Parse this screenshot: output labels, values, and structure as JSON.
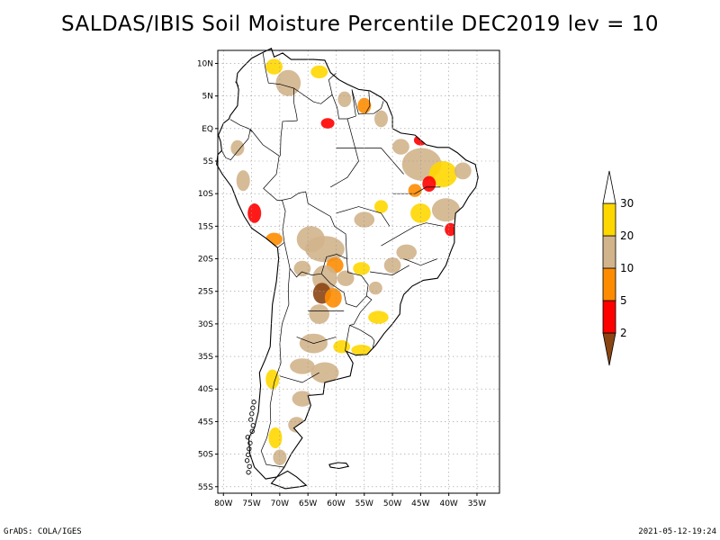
{
  "title": "SALDAS/IBIS Soil Moisture Percentile DEC2019 lev = 10",
  "footer": {
    "left": "GrADS: COLA/IGES",
    "right": "2021-05-12-19:24"
  },
  "map": {
    "lon_range": [
      -81,
      -31
    ],
    "lat_range": [
      -56,
      12
    ],
    "lat_ticks": [
      {
        "value": 10,
        "label": "10N"
      },
      {
        "value": 5,
        "label": "5N"
      },
      {
        "value": 0,
        "label": "EQ"
      },
      {
        "value": -5,
        "label": "5S"
      },
      {
        "value": -10,
        "label": "10S"
      },
      {
        "value": -15,
        "label": "15S"
      },
      {
        "value": -20,
        "label": "20S"
      },
      {
        "value": -25,
        "label": "25S"
      },
      {
        "value": -30,
        "label": "30S"
      },
      {
        "value": -35,
        "label": "35S"
      },
      {
        "value": -40,
        "label": "40S"
      },
      {
        "value": -45,
        "label": "45S"
      },
      {
        "value": -50,
        "label": "50S"
      },
      {
        "value": -55,
        "label": "55S"
      }
    ],
    "lon_ticks": [
      {
        "value": -80,
        "label": "80W"
      },
      {
        "value": -75,
        "label": "75W"
      },
      {
        "value": -70,
        "label": "70W"
      },
      {
        "value": -65,
        "label": "65W"
      },
      {
        "value": -60,
        "label": "60W"
      },
      {
        "value": -55,
        "label": "55W"
      },
      {
        "value": -50,
        "label": "50W"
      },
      {
        "value": -45,
        "label": "45W"
      },
      {
        "value": -40,
        "label": "40W"
      },
      {
        "value": -35,
        "label": "35W"
      }
    ],
    "grid": true,
    "coastline": [
      [
        -77.5,
        8.5
      ],
      [
        -76.5,
        9.5
      ],
      [
        -75,
        10.8
      ],
      [
        -73,
        11.7
      ],
      [
        -71.5,
        12.3
      ],
      [
        -71,
        11
      ],
      [
        -69.5,
        11.6
      ],
      [
        -68,
        10.6
      ],
      [
        -66,
        10.6
      ],
      [
        -64,
        10.6
      ],
      [
        -62,
        10.5
      ],
      [
        -61,
        8.6
      ],
      [
        -59.5,
        7.5
      ],
      [
        -58,
        6.8
      ],
      [
        -56,
        6
      ],
      [
        -54,
        5.8
      ],
      [
        -52,
        4.8
      ],
      [
        -51,
        4
      ],
      [
        -50,
        1.8
      ],
      [
        -50,
        0
      ],
      [
        -48.5,
        -0.7
      ],
      [
        -46,
        -1
      ],
      [
        -44,
        -2.5
      ],
      [
        -42,
        -2.9
      ],
      [
        -40,
        -2.9
      ],
      [
        -38.5,
        -3.7
      ],
      [
        -37,
        -4.8
      ],
      [
        -35.3,
        -5.5
      ],
      [
        -34.8,
        -7.5
      ],
      [
        -35.2,
        -9
      ],
      [
        -36.5,
        -10.5
      ],
      [
        -37.5,
        -12
      ],
      [
        -38.8,
        -13
      ],
      [
        -39,
        -15
      ],
      [
        -39,
        -17.5
      ],
      [
        -39.7,
        -19
      ],
      [
        -40.5,
        -21
      ],
      [
        -42,
        -23
      ],
      [
        -44.5,
        -23.3
      ],
      [
        -46.5,
        -24.2
      ],
      [
        -48,
        -25.5
      ],
      [
        -48.6,
        -27
      ],
      [
        -48.7,
        -28.5
      ],
      [
        -50,
        -30
      ],
      [
        -51.5,
        -31.5
      ],
      [
        -53,
        -33.3
      ],
      [
        -54.5,
        -34.7
      ],
      [
        -56.5,
        -34.8
      ],
      [
        -58.2,
        -34.2
      ],
      [
        -57,
        -36
      ],
      [
        -57.5,
        -38
      ],
      [
        -62,
        -39
      ],
      [
        -62.3,
        -40.8
      ],
      [
        -65,
        -41
      ],
      [
        -64.5,
        -42.5
      ],
      [
        -65.5,
        -44.8
      ],
      [
        -67.5,
        -46
      ],
      [
        -66,
        -47.5
      ],
      [
        -68,
        -50
      ],
      [
        -69.2,
        -52
      ],
      [
        -70.5,
        -53.5
      ],
      [
        -72.5,
        -53.8
      ],
      [
        -74.5,
        -52
      ],
      [
        -75.3,
        -50
      ],
      [
        -75.5,
        -47.5
      ],
      [
        -74.5,
        -46
      ],
      [
        -73.8,
        -43.5
      ],
      [
        -73.6,
        -41.5
      ],
      [
        -73.4,
        -39.5
      ],
      [
        -73.6,
        -37.5
      ],
      [
        -72.6,
        -35.5
      ],
      [
        -71.7,
        -33.5
      ],
      [
        -71.5,
        -30
      ],
      [
        -71.3,
        -27
      ],
      [
        -70.6,
        -23.5
      ],
      [
        -70.2,
        -20
      ],
      [
        -70.4,
        -18.3
      ],
      [
        -72.5,
        -16.8
      ],
      [
        -75,
        -15.3
      ],
      [
        -76.3,
        -13.5
      ],
      [
        -77.4,
        -11.5
      ],
      [
        -78.5,
        -9
      ],
      [
        -80.2,
        -7
      ],
      [
        -81.2,
        -5.5
      ],
      [
        -81,
        -4
      ],
      [
        -80.3,
        -3.4
      ],
      [
        -80.5,
        -2
      ],
      [
        -80.9,
        -1
      ],
      [
        -80,
        0.8
      ],
      [
        -79,
        1.5
      ],
      [
        -78.8,
        2
      ],
      [
        -77.5,
        3.5
      ],
      [
        -77.3,
        6
      ],
      [
        -77.7,
        7.2
      ],
      [
        -77.5,
        8.5
      ]
    ],
    "tierra_del_fuego": [
      [
        -68.6,
        -52.6
      ],
      [
        -67,
        -53.5
      ],
      [
        -65.3,
        -54.8
      ],
      [
        -66.5,
        -55
      ],
      [
        -69,
        -55.3
      ],
      [
        -71.5,
        -54.5
      ],
      [
        -70.5,
        -53.5
      ],
      [
        -68.6,
        -52.6
      ]
    ],
    "falklands": [
      [
        -61.2,
        -51.6
      ],
      [
        -59.7,
        -51.3
      ],
      [
        -58.2,
        -51.4
      ],
      [
        -57.8,
        -51.9
      ],
      [
        -59.5,
        -52.2
      ],
      [
        -61,
        -52
      ],
      [
        -61.2,
        -51.6
      ]
    ],
    "borders": [
      [
        [
          -73,
          11.7
        ],
        [
          -72.5,
          9
        ],
        [
          -72,
          7
        ],
        [
          -70,
          6.8
        ],
        [
          -67.5,
          6.2
        ],
        [
          -67.5,
          4
        ],
        [
          -67,
          2
        ],
        [
          -66.9,
          1.2
        ]
      ],
      [
        [
          -66.9,
          1.2
        ],
        [
          -69.5,
          1.1
        ],
        [
          -69.8,
          -1.3
        ],
        [
          -69.9,
          -4.2
        ]
      ],
      [
        [
          -77.3,
          6.5
        ],
        [
          -77.9,
          7.2
        ]
      ],
      [
        [
          -78.8,
          1.4
        ],
        [
          -77,
          0.5
        ],
        [
          -75.5,
          0
        ],
        [
          -75,
          -0.5
        ]
      ],
      [
        [
          -80.3,
          -3.4
        ],
        [
          -79.6,
          -4.5
        ],
        [
          -78.7,
          -4.8
        ],
        [
          -77,
          -3
        ],
        [
          -75.6,
          -1.6
        ],
        [
          -75.2,
          -0.1
        ]
      ],
      [
        [
          -75.2,
          -0.1
        ],
        [
          -73,
          -2.5
        ],
        [
          -70.1,
          -4.2
        ],
        [
          -70.6,
          -7
        ],
        [
          -72.9,
          -9.2
        ],
        [
          -70.5,
          -11
        ],
        [
          -69.6,
          -11
        ],
        [
          -69,
          -12.7
        ],
        [
          -69.5,
          -15.5
        ],
        [
          -69.2,
          -17.5
        ],
        [
          -70.4,
          -18.3
        ]
      ],
      [
        [
          -69.6,
          -11
        ],
        [
          -68,
          -10.7
        ],
        [
          -66.6,
          -9.9
        ],
        [
          -65.4,
          -9.7
        ],
        [
          -65,
          -11.5
        ],
        [
          -63,
          -12.5
        ],
        [
          -61,
          -13.5
        ],
        [
          -60.3,
          -15
        ],
        [
          -58.3,
          -16.2
        ],
        [
          -58.1,
          -20
        ]
      ],
      [
        [
          -58.1,
          -20
        ],
        [
          -59.9,
          -19.3
        ],
        [
          -61.7,
          -19.7
        ],
        [
          -62.6,
          -22.3
        ]
      ],
      [
        [
          -69.2,
          -17.5
        ],
        [
          -68.6,
          -19.8
        ],
        [
          -68.2,
          -21.5
        ],
        [
          -67,
          -22.8
        ],
        [
          -66.1,
          -22
        ],
        [
          -64.3,
          -22.5
        ],
        [
          -62.6,
          -22.3
        ]
      ],
      [
        [
          -62.6,
          -22.3
        ],
        [
          -61,
          -23.8
        ],
        [
          -58.6,
          -25.2
        ],
        [
          -58.2,
          -26.9
        ],
        [
          -56.4,
          -27.4
        ],
        [
          -54.6,
          -25.7
        ],
        [
          -54.3,
          -24
        ],
        [
          -55.5,
          -22.6
        ],
        [
          -57.9,
          -22.1
        ],
        [
          -58.1,
          -20
        ]
      ],
      [
        [
          -54.6,
          -25.7
        ],
        [
          -53.7,
          -26.3
        ],
        [
          -55.7,
          -28.2
        ],
        [
          -56.9,
          -30.1
        ],
        [
          -57.6,
          -30.2
        ]
      ],
      [
        [
          -57.6,
          -30.2
        ],
        [
          -55.8,
          -30.9
        ],
        [
          -53.7,
          -32
        ],
        [
          -53.2,
          -32.6
        ],
        [
          -53.5,
          -33.7
        ]
      ],
      [
        [
          -57.6,
          -30.2
        ],
        [
          -58.2,
          -33
        ],
        [
          -58.4,
          -34.2
        ]
      ],
      [
        [
          -68.2,
          -21.5
        ],
        [
          -68.5,
          -24.5
        ],
        [
          -68.4,
          -27
        ],
        [
          -69.6,
          -30
        ],
        [
          -70,
          -33
        ],
        [
          -69.8,
          -36
        ],
        [
          -71,
          -39
        ],
        [
          -71.7,
          -42.5
        ],
        [
          -71.6,
          -45
        ],
        [
          -72.3,
          -47.5
        ],
        [
          -73.3,
          -49.5
        ],
        [
          -72.4,
          -51.6
        ],
        [
          -69.2,
          -52
        ]
      ],
      [
        [
          -67.5,
          6.2
        ],
        [
          -64,
          4.1
        ],
        [
          -62.7,
          3.8
        ],
        [
          -60.7,
          5.2
        ],
        [
          -61.3,
          7.5
        ],
        [
          -60,
          8.5
        ]
      ],
      [
        [
          -60.7,
          5.2
        ],
        [
          -59.8,
          3.2
        ],
        [
          -59.5,
          1.5
        ],
        [
          -58,
          1.5
        ],
        [
          -56.5,
          1.9
        ]
      ],
      [
        [
          -56.5,
          1.9
        ],
        [
          -57.2,
          6
        ],
        [
          -56,
          2.2
        ],
        [
          -54.8,
          2.3
        ],
        [
          -54,
          3.5
        ],
        [
          -54.2,
          5.7
        ]
      ],
      [
        [
          -54.8,
          2.3
        ],
        [
          -53.3,
          2.3
        ],
        [
          -52,
          3.1
        ],
        [
          -51.6,
          4.2
        ]
      ],
      [
        [
          -60,
          -3
        ],
        [
          -52,
          -3
        ],
        [
          -48,
          -7
        ]
      ],
      [
        [
          -58,
          1.5
        ],
        [
          -56,
          -5
        ],
        [
          -58,
          -7.5
        ],
        [
          -61,
          -9
        ]
      ],
      [
        [
          -50,
          -10
        ],
        [
          -46,
          -10
        ],
        [
          -44,
          -9
        ],
        [
          -41.5,
          -9
        ]
      ],
      [
        [
          -52,
          -18
        ],
        [
          -48,
          -16
        ],
        [
          -46,
          -15
        ],
        [
          -44,
          -14.5
        ],
        [
          -41,
          -15
        ]
      ],
      [
        [
          -48,
          -20
        ],
        [
          -45,
          -21
        ],
        [
          -42,
          -20
        ]
      ],
      [
        [
          -54,
          -22
        ],
        [
          -50,
          -22.5
        ],
        [
          -47,
          -21
        ]
      ],
      [
        [
          -60,
          -13
        ],
        [
          -56,
          -12
        ],
        [
          -52,
          -13
        ],
        [
          -50.5,
          -15
        ]
      ],
      [
        [
          -65,
          -28
        ],
        [
          -62,
          -28
        ],
        [
          -58.6,
          -28
        ]
      ],
      [
        [
          -67,
          -32
        ],
        [
          -64,
          -33
        ],
        [
          -60,
          -32
        ]
      ],
      [
        [
          -70,
          -38
        ],
        [
          -66,
          -39
        ],
        [
          -63,
          -37.5
        ]
      ]
    ]
  },
  "colorbar": {
    "labels": [
      "2",
      "5",
      "10",
      "20",
      "30"
    ],
    "colors": [
      "#8b4513",
      "#ff0000",
      "#ff8c00",
      "#d2b48c",
      "#ffd700",
      "#ffffff"
    ]
  },
  "moisture_patches": [
    {
      "lon": -68.5,
      "lat": 7,
      "rx": 2.2,
      "ry": 2,
      "c": 3
    },
    {
      "lon": -71,
      "lat": 9.5,
      "rx": 1.5,
      "ry": 1.2,
      "c": 4
    },
    {
      "lon": -63,
      "lat": 8.7,
      "rx": 1.5,
      "ry": 1,
      "c": 4
    },
    {
      "lon": -58.5,
      "lat": 4.5,
      "rx": 1.2,
      "ry": 1.2,
      "c": 3
    },
    {
      "lon": -55,
      "lat": 3.5,
      "rx": 1.2,
      "ry": 1.2,
      "c": 2
    },
    {
      "lon": -52,
      "lat": 1.5,
      "rx": 1.2,
      "ry": 1.3,
      "c": 3
    },
    {
      "lon": -61.5,
      "lat": 0.8,
      "rx": 1.2,
      "ry": 0.8,
      "c": 1
    },
    {
      "lon": -45,
      "lat": -1.8,
      "rx": 1.2,
      "ry": 0.8,
      "c": 1
    },
    {
      "lon": -48.5,
      "lat": -2.8,
      "rx": 1.5,
      "ry": 1.2,
      "c": 3
    },
    {
      "lon": -44.8,
      "lat": -5.5,
      "rx": 3.5,
      "ry": 2.5,
      "c": 3
    },
    {
      "lon": -41,
      "lat": -7,
      "rx": 2.5,
      "ry": 2,
      "c": 4
    },
    {
      "lon": -43.5,
      "lat": -8.5,
      "rx": 1.2,
      "ry": 1.2,
      "c": 1
    },
    {
      "lon": -37.5,
      "lat": -6.5,
      "rx": 1.5,
      "ry": 1.3,
      "c": 3
    },
    {
      "lon": -46,
      "lat": -9.5,
      "rx": 1.2,
      "ry": 1,
      "c": 2
    },
    {
      "lon": -40.5,
      "lat": -12.5,
      "rx": 2.5,
      "ry": 1.8,
      "c": 3
    },
    {
      "lon": -45,
      "lat": -13,
      "rx": 1.8,
      "ry": 1.5,
      "c": 4
    },
    {
      "lon": -39.7,
      "lat": -15.5,
      "rx": 1,
      "ry": 1,
      "c": 1
    },
    {
      "lon": -55,
      "lat": -14,
      "rx": 1.8,
      "ry": 1.2,
      "c": 3
    },
    {
      "lon": -52,
      "lat": -12,
      "rx": 1.2,
      "ry": 1,
      "c": 4
    },
    {
      "lon": -64.5,
      "lat": -17,
      "rx": 2.5,
      "ry": 2,
      "c": 3
    },
    {
      "lon": -62,
      "lat": -18.5,
      "rx": 3.5,
      "ry": 2,
      "c": 3
    },
    {
      "lon": -60.2,
      "lat": -21,
      "rx": 1.5,
      "ry": 1.2,
      "c": 2
    },
    {
      "lon": -62,
      "lat": -23,
      "rx": 2.2,
      "ry": 2,
      "c": 3
    },
    {
      "lon": -62.5,
      "lat": -25.3,
      "rx": 1.6,
      "ry": 1.6,
      "c": 0
    },
    {
      "lon": -60.5,
      "lat": -26,
      "rx": 1.5,
      "ry": 1.5,
      "c": 2
    },
    {
      "lon": -66,
      "lat": -21.5,
      "rx": 1.5,
      "ry": 1.2,
      "c": 3
    },
    {
      "lon": -58.3,
      "lat": -23,
      "rx": 1.5,
      "ry": 1.2,
      "c": 3
    },
    {
      "lon": -55.5,
      "lat": -21.5,
      "rx": 1.5,
      "ry": 1,
      "c": 4
    },
    {
      "lon": -50,
      "lat": -21,
      "rx": 1.5,
      "ry": 1.2,
      "c": 3
    },
    {
      "lon": -47.5,
      "lat": -19,
      "rx": 1.8,
      "ry": 1.2,
      "c": 3
    },
    {
      "lon": -53,
      "lat": -24.5,
      "rx": 1.2,
      "ry": 1,
      "c": 3
    },
    {
      "lon": -63,
      "lat": -28.5,
      "rx": 1.8,
      "ry": 1.5,
      "c": 3
    },
    {
      "lon": -52.5,
      "lat": -29,
      "rx": 1.8,
      "ry": 1,
      "c": 4
    },
    {
      "lon": -64,
      "lat": -33,
      "rx": 2.5,
      "ry": 1.5,
      "c": 3
    },
    {
      "lon": -59,
      "lat": -33.5,
      "rx": 1.5,
      "ry": 1,
      "c": 4
    },
    {
      "lon": -55.5,
      "lat": -34,
      "rx": 1.8,
      "ry": 0.8,
      "c": 4
    },
    {
      "lon": -66,
      "lat": -36.5,
      "rx": 2.2,
      "ry": 1.2,
      "c": 3
    },
    {
      "lon": -62,
      "lat": -37.5,
      "rx": 2.5,
      "ry": 1.6,
      "c": 3
    },
    {
      "lon": -66,
      "lat": -41.5,
      "rx": 1.8,
      "ry": 1.2,
      "c": 3
    },
    {
      "lon": -71.3,
      "lat": -38.5,
      "rx": 1.2,
      "ry": 1.5,
      "c": 4
    },
    {
      "lon": -67,
      "lat": -45.5,
      "rx": 1.5,
      "ry": 1.2,
      "c": 3
    },
    {
      "lon": -70.8,
      "lat": -47.5,
      "rx": 1.2,
      "ry": 1.6,
      "c": 4
    },
    {
      "lon": -70,
      "lat": -50.5,
      "rx": 1.2,
      "ry": 1.2,
      "c": 3
    },
    {
      "lon": -76.5,
      "lat": -8,
      "rx": 1.2,
      "ry": 1.6,
      "c": 3
    },
    {
      "lon": -74.5,
      "lat": -13,
      "rx": 1.2,
      "ry": 1.5,
      "c": 1
    },
    {
      "lon": -77.5,
      "lat": -3,
      "rx": 1.2,
      "ry": 1.2,
      "c": 3
    },
    {
      "lon": -71,
      "lat": -17,
      "rx": 1.5,
      "ry": 1,
      "c": 2
    }
  ]
}
